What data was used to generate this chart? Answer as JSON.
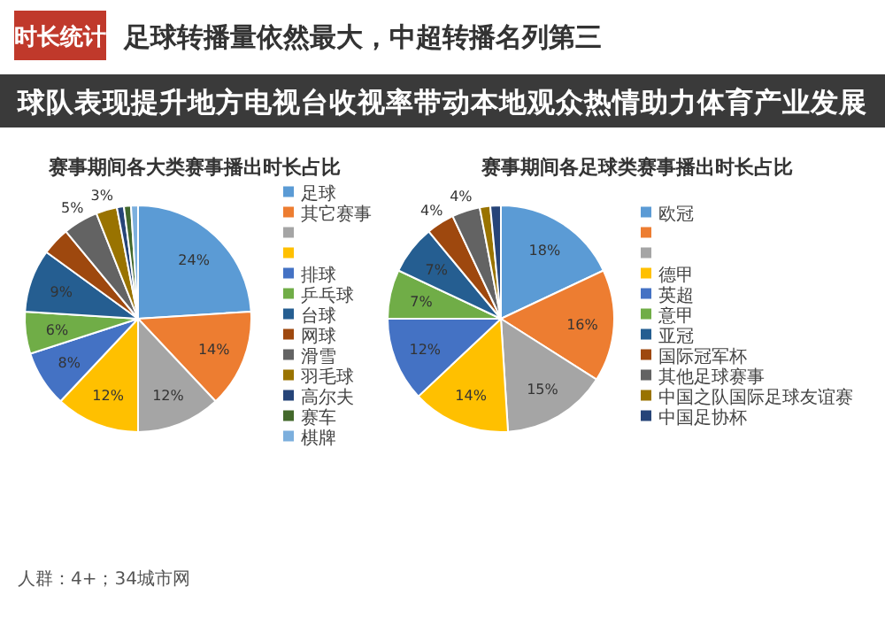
{
  "chart_data": [
    {
      "type": "other",
      "title": "足球转播量依然最大，中超转播名列第三",
      "subtitle": "时长统计",
      "annotations": [
        "球队表现提升地方电视台收视率带动本地观众热情助力体育产业发展",
        "人群：4+；34城市网"
      ]
    },
    {
      "type": "pie",
      "title": "赛事期间各大类赛事播出时长占比",
      "legend": "right",
      "categories": [
        "足球",
        "其它赛事",
        null,
        null,
        "排球",
        "乒乓球",
        "台球",
        "网球",
        "滑雪",
        "羽毛球",
        "高尔夫",
        "赛车",
        "棋牌"
      ],
      "values": [
        24,
        14,
        12,
        12,
        8,
        6,
        9,
        4,
        5,
        3,
        1,
        1,
        1
      ],
      "value_labels": [
        "24%",
        "14%",
        "12%",
        "12%",
        "8%",
        "6%",
        "9%",
        null,
        "5%",
        "3%",
        null,
        null,
        null
      ],
      "colors": [
        "#5b9bd5",
        "#ed7d31",
        "#a5a5a5",
        "#ffc000",
        "#4472c4",
        "#70ad47",
        "#255e91",
        "#9e480e",
        "#636363",
        "#997300",
        "#264478",
        "#43682b",
        "#7cafdd"
      ]
    },
    {
      "type": "pie",
      "title": "赛事期间各足球类赛事播出时长占比",
      "legend": "right",
      "categories": [
        "欧冠",
        null,
        null,
        "德甲",
        "英超",
        "意甲",
        "亚冠",
        "国际冠军杯",
        "其他足球赛事",
        "中国之队国际足球友谊赛",
        "中国足协杯"
      ],
      "values": [
        18,
        16,
        15,
        14,
        12,
        7,
        7,
        4,
        4,
        1.5,
        1.5
      ],
      "value_labels": [
        "18%",
        "16%",
        "15%",
        "14%",
        "12%",
        "7%",
        "7%",
        "4%",
        "4%",
        null,
        null
      ],
      "colors": [
        "#5b9bd5",
        "#ed7d31",
        "#a5a5a5",
        "#ffc000",
        "#4472c4",
        "#70ad47",
        "#255e91",
        "#9e480e",
        "#636363",
        "#997300",
        "#264478"
      ]
    }
  ]
}
